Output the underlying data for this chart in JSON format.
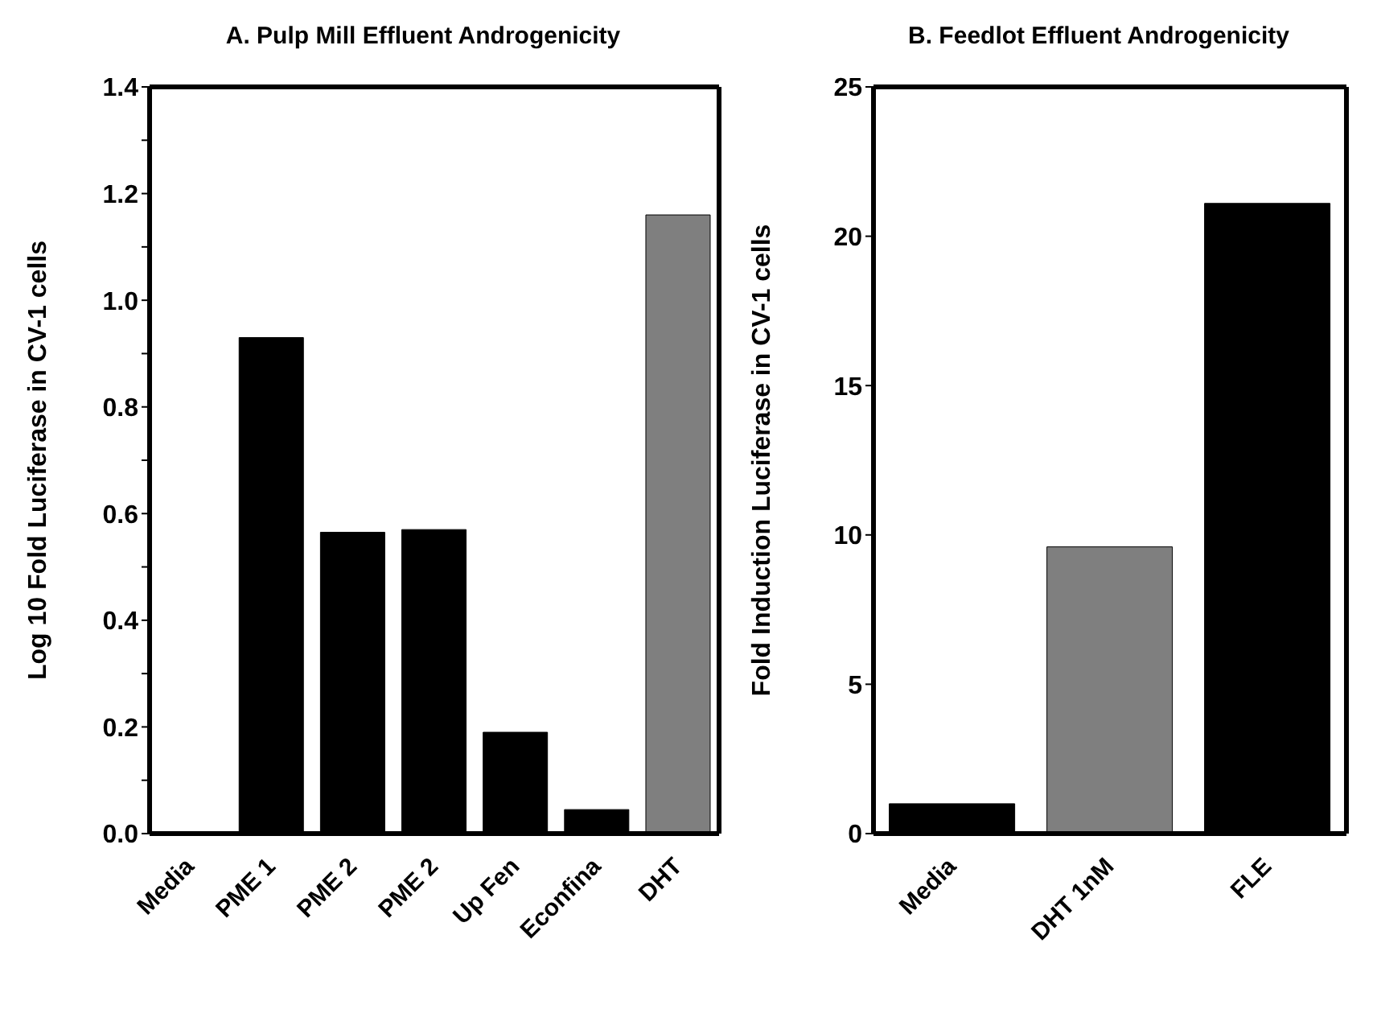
{
  "chart_data": [
    {
      "type": "bar",
      "title": "A. Pulp Mill Effluent Androgenicity",
      "ylabel": "Log 10 Fold Luciferase in CV-1 cells",
      "categories": [
        "Media",
        "PME 1",
        "PME 2",
        "PME 2",
        "Up Fen",
        "Econfina",
        "DHT"
      ],
      "values": [
        0,
        0.93,
        0.565,
        0.57,
        0.19,
        0.045,
        1.16
      ],
      "colors": [
        "#000000",
        "#000000",
        "#000000",
        "#000000",
        "#000000",
        "#000000",
        "#7f7f7f"
      ],
      "ylim": [
        0,
        1.4
      ],
      "yticks": [
        {
          "value": 0,
          "label": "0.0"
        },
        {
          "value": 0.1,
          "label": null
        },
        {
          "value": 0.2,
          "label": "0.2"
        },
        {
          "value": 0.3,
          "label": null
        },
        {
          "value": 0.4,
          "label": "0.4"
        },
        {
          "value": 0.5,
          "label": null
        },
        {
          "value": 0.6,
          "label": "0.6"
        },
        {
          "value": 0.7,
          "label": null
        },
        {
          "value": 0.8,
          "label": "0.8"
        },
        {
          "value": 0.9,
          "label": null
        },
        {
          "value": 1,
          "label": "1.0"
        },
        {
          "value": 1.1,
          "label": null
        },
        {
          "value": 1.2,
          "label": "1.2"
        },
        {
          "value": 1.3,
          "label": null
        },
        {
          "value": 1.4,
          "label": "1.4"
        }
      ],
      "grid": false,
      "legend": false
    },
    {
      "type": "bar",
      "title": "B. Feedlot Effluent Androgenicity",
      "ylabel": "Fold Induction Luciferase in CV-1 cells",
      "categories": [
        "Media",
        "DHT 1nM",
        "FLE"
      ],
      "values": [
        1,
        9.6,
        21.1
      ],
      "colors": [
        "#000000",
        "#7f7f7f",
        "#000000"
      ],
      "ylim": [
        0,
        25
      ],
      "yticks": [
        0,
        5,
        10,
        15,
        20,
        25
      ],
      "grid": false,
      "legend": false
    }
  ]
}
